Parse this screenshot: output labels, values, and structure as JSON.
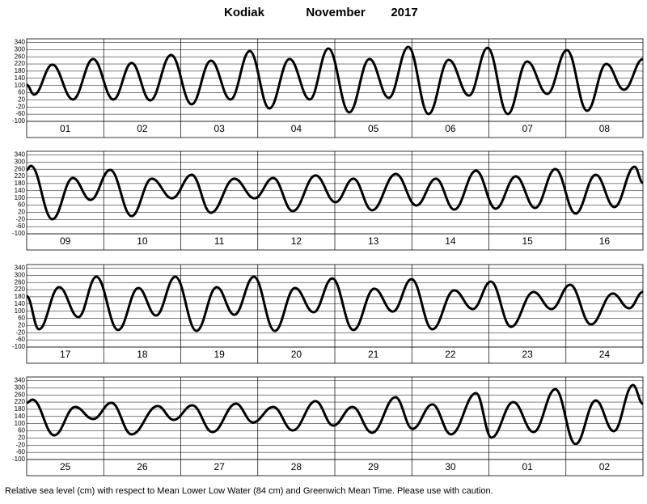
{
  "header": {
    "station": "Kodiak",
    "month": "November",
    "year": "2017"
  },
  "footer": "Relative sea level (cm) with respect to Mean Lower Low Water (84 cm) and Greenwich Mean Time. Please use with caution.",
  "chart_data": [
    {
      "type": "line",
      "categories": [
        "01",
        "02",
        "03",
        "04",
        "05",
        "06",
        "07",
        "08"
      ],
      "xlim": [
        0,
        192
      ],
      "ylim": [
        -100,
        360
      ],
      "yticks": [
        -100,
        -60,
        -20,
        20,
        60,
        100,
        140,
        180,
        220,
        260,
        300,
        340
      ],
      "grid": true,
      "x": [
        0,
        2.3,
        8,
        14.4,
        20.7,
        27,
        32.7,
        38.5,
        45,
        51.4,
        57.4,
        63.5,
        69.5,
        75.6,
        81.9,
        88.2,
        94,
        100.5,
        106.8,
        112.8,
        118.9,
        125.2,
        131.5,
        137.8,
        143.6,
        149.9,
        155.9,
        162.2,
        168.3,
        174.6,
        180.6,
        186.1,
        192
      ],
      "series": [
        {
          "color": "#000000",
          "values": [
            103,
            49,
            216,
            22,
            247,
            22,
            225,
            17,
            270,
            -5,
            238,
            22,
            292,
            -28,
            247,
            22,
            306,
            -50,
            247,
            31,
            315,
            -59,
            243,
            44,
            310,
            -59,
            234,
            53,
            297,
            -41,
            220,
            76,
            247
          ]
        }
      ]
    },
    {
      "type": "line",
      "categories": [
        "09",
        "10",
        "11",
        "12",
        "13",
        "14",
        "15",
        "16"
      ],
      "xlim": [
        0,
        192
      ],
      "ylim": [
        -100,
        360
      ],
      "yticks": [
        -100,
        -60,
        -20,
        20,
        60,
        100,
        140,
        180,
        220,
        260,
        300,
        340
      ],
      "grid": true,
      "x": [
        0,
        1.3,
        8,
        14.4,
        19.9,
        26,
        32.7,
        39,
        45.3,
        51.4,
        57.4,
        64.7,
        71,
        76.8,
        82.9,
        90,
        96.2,
        101.8,
        107.6,
        115,
        121.4,
        127.5,
        133.2,
        140,
        146.1,
        152.4,
        158.4,
        164.7,
        171,
        177.3,
        183.1,
        189.4,
        192
      ],
      "series": [
        {
          "color": "#000000",
          "values": [
            256,
            279,
            -19,
            211,
            89,
            256,
            -1,
            207,
            98,
            229,
            17,
            207,
            98,
            211,
            26,
            225,
            76,
            207,
            31,
            234,
            58,
            207,
            35,
            252,
            40,
            220,
            44,
            261,
            13,
            229,
            49,
            274,
            184
          ]
        }
      ]
    },
    {
      "type": "line",
      "categories": [
        "17",
        "18",
        "19",
        "20",
        "21",
        "22",
        "23",
        "24"
      ],
      "xlim": [
        0,
        192
      ],
      "ylim": [
        -100,
        360
      ],
      "yticks": [
        -100,
        -60,
        -20,
        20,
        60,
        100,
        140,
        180,
        220,
        260,
        300,
        340
      ],
      "grid": true,
      "x": [
        0,
        3.8,
        10.1,
        16.1,
        21.7,
        28.5,
        34.8,
        40.3,
        46.3,
        52.9,
        59.2,
        64.7,
        70.8,
        77.3,
        83.6,
        89.4,
        95.2,
        101.8,
        108.3,
        114.1,
        119.9,
        126.4,
        133.2,
        139,
        144.6,
        150.9,
        157.9,
        163.5,
        169.3,
        175.8,
        182.6,
        187.7,
        192
      ],
      "series": [
        {
          "color": "#000000",
          "values": [
            184,
            -1,
            234,
            67,
            292,
            -5,
            229,
            76,
            292,
            -10,
            234,
            80,
            292,
            -10,
            229,
            94,
            283,
            -5,
            225,
            98,
            279,
            -1,
            216,
            112,
            265,
            13,
            207,
            112,
            247,
            26,
            198,
            116,
            207
          ]
        }
      ]
    },
    {
      "type": "line",
      "categories": [
        "25",
        "26",
        "27",
        "28",
        "29",
        "30",
        "01",
        "02"
      ],
      "xlim": [
        0,
        192
      ],
      "ylim": [
        -100,
        360
      ],
      "yticks": [
        -100,
        -60,
        -20,
        20,
        60,
        100,
        140,
        180,
        220,
        260,
        300,
        340
      ],
      "grid": true,
      "x": [
        0,
        1.8,
        8.6,
        15.1,
        20.7,
        26.4,
        32.7,
        40.8,
        45.8,
        51.6,
        57.9,
        65.2,
        70.5,
        76.8,
        82.9,
        90,
        95.5,
        101.5,
        107.6,
        114.9,
        120.2,
        126.4,
        132.2,
        140,
        144.8,
        151.6,
        157.9,
        164.7,
        171,
        177.3,
        182.9,
        188.9,
        192
      ],
      "series": [
        {
          "color": "#000000",
          "values": [
            216,
            234,
            35,
            193,
            126,
            216,
            40,
            198,
            121,
            202,
            53,
            211,
            107,
            193,
            62,
            225,
            89,
            193,
            49,
            247,
            71,
            207,
            40,
            270,
            22,
            220,
            53,
            292,
            -14,
            229,
            58,
            315,
            211
          ]
        }
      ]
    }
  ]
}
